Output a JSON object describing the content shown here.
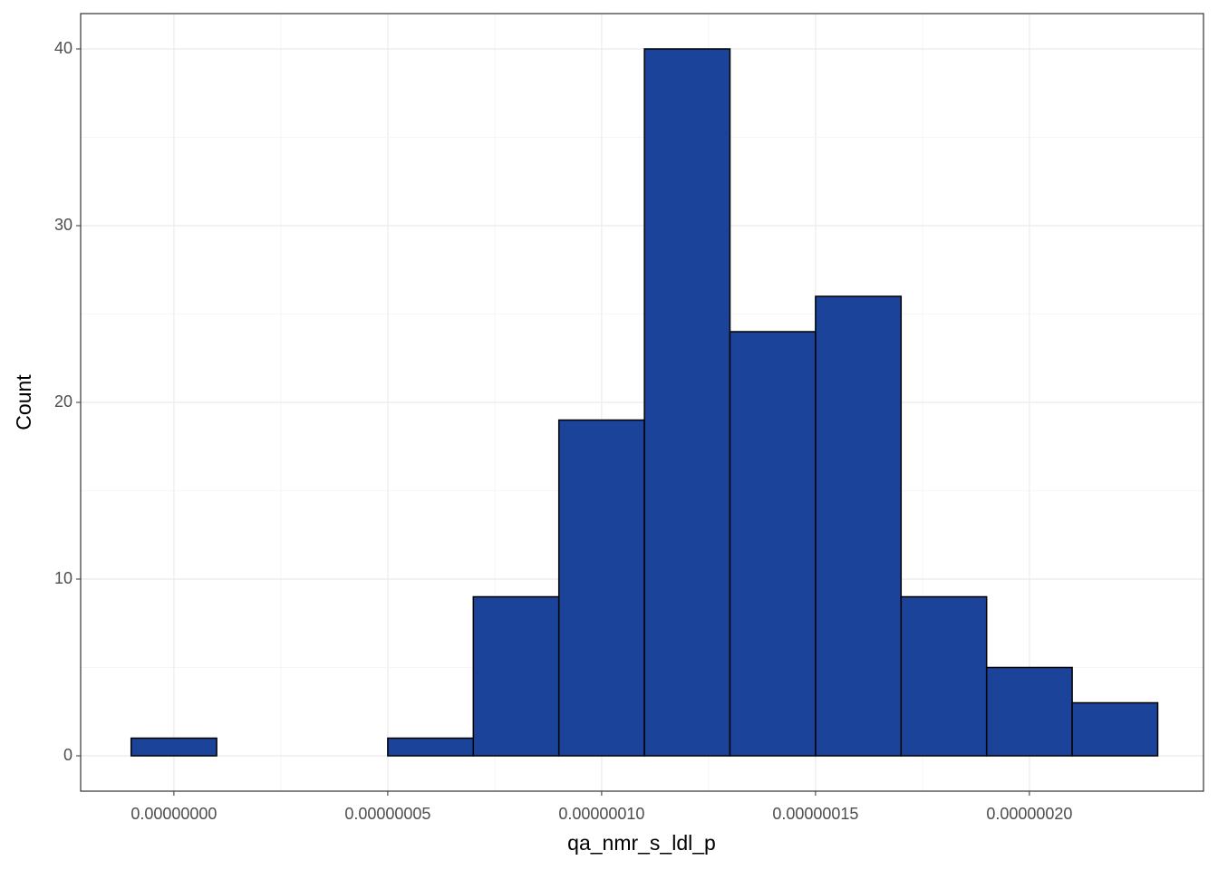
{
  "chart_data": {
    "type": "histogram",
    "x_label": "qa_nmr_s_ldl_p",
    "y_label": "Count",
    "bins": [
      -1e-08,
      1e-08,
      3e-08,
      5e-08,
      7e-08,
      9e-08,
      1.1e-07,
      1.3e-07,
      1.5e-07,
      1.7e-07,
      1.9e-07,
      2.1e-07,
      2.3e-07
    ],
    "counts": [
      1,
      0,
      0,
      1,
      9,
      19,
      40,
      24,
      26,
      9,
      5,
      3
    ],
    "color": "#1a4399",
    "xlim": [
      -2.18e-08,
      2.407e-07
    ],
    "ylim": [
      -2,
      42
    ],
    "xticks": [
      {
        "value": 0,
        "label": "0.00000000"
      },
      {
        "value": 5e-08,
        "label": "0.00000005"
      },
      {
        "value": 1e-07,
        "label": "0.00000010"
      },
      {
        "value": 1.5e-07,
        "label": "0.00000015"
      },
      {
        "value": 2e-07,
        "label": "0.00000020"
      }
    ],
    "yticks": [
      0,
      10,
      20,
      30,
      40
    ],
    "grid": true
  }
}
